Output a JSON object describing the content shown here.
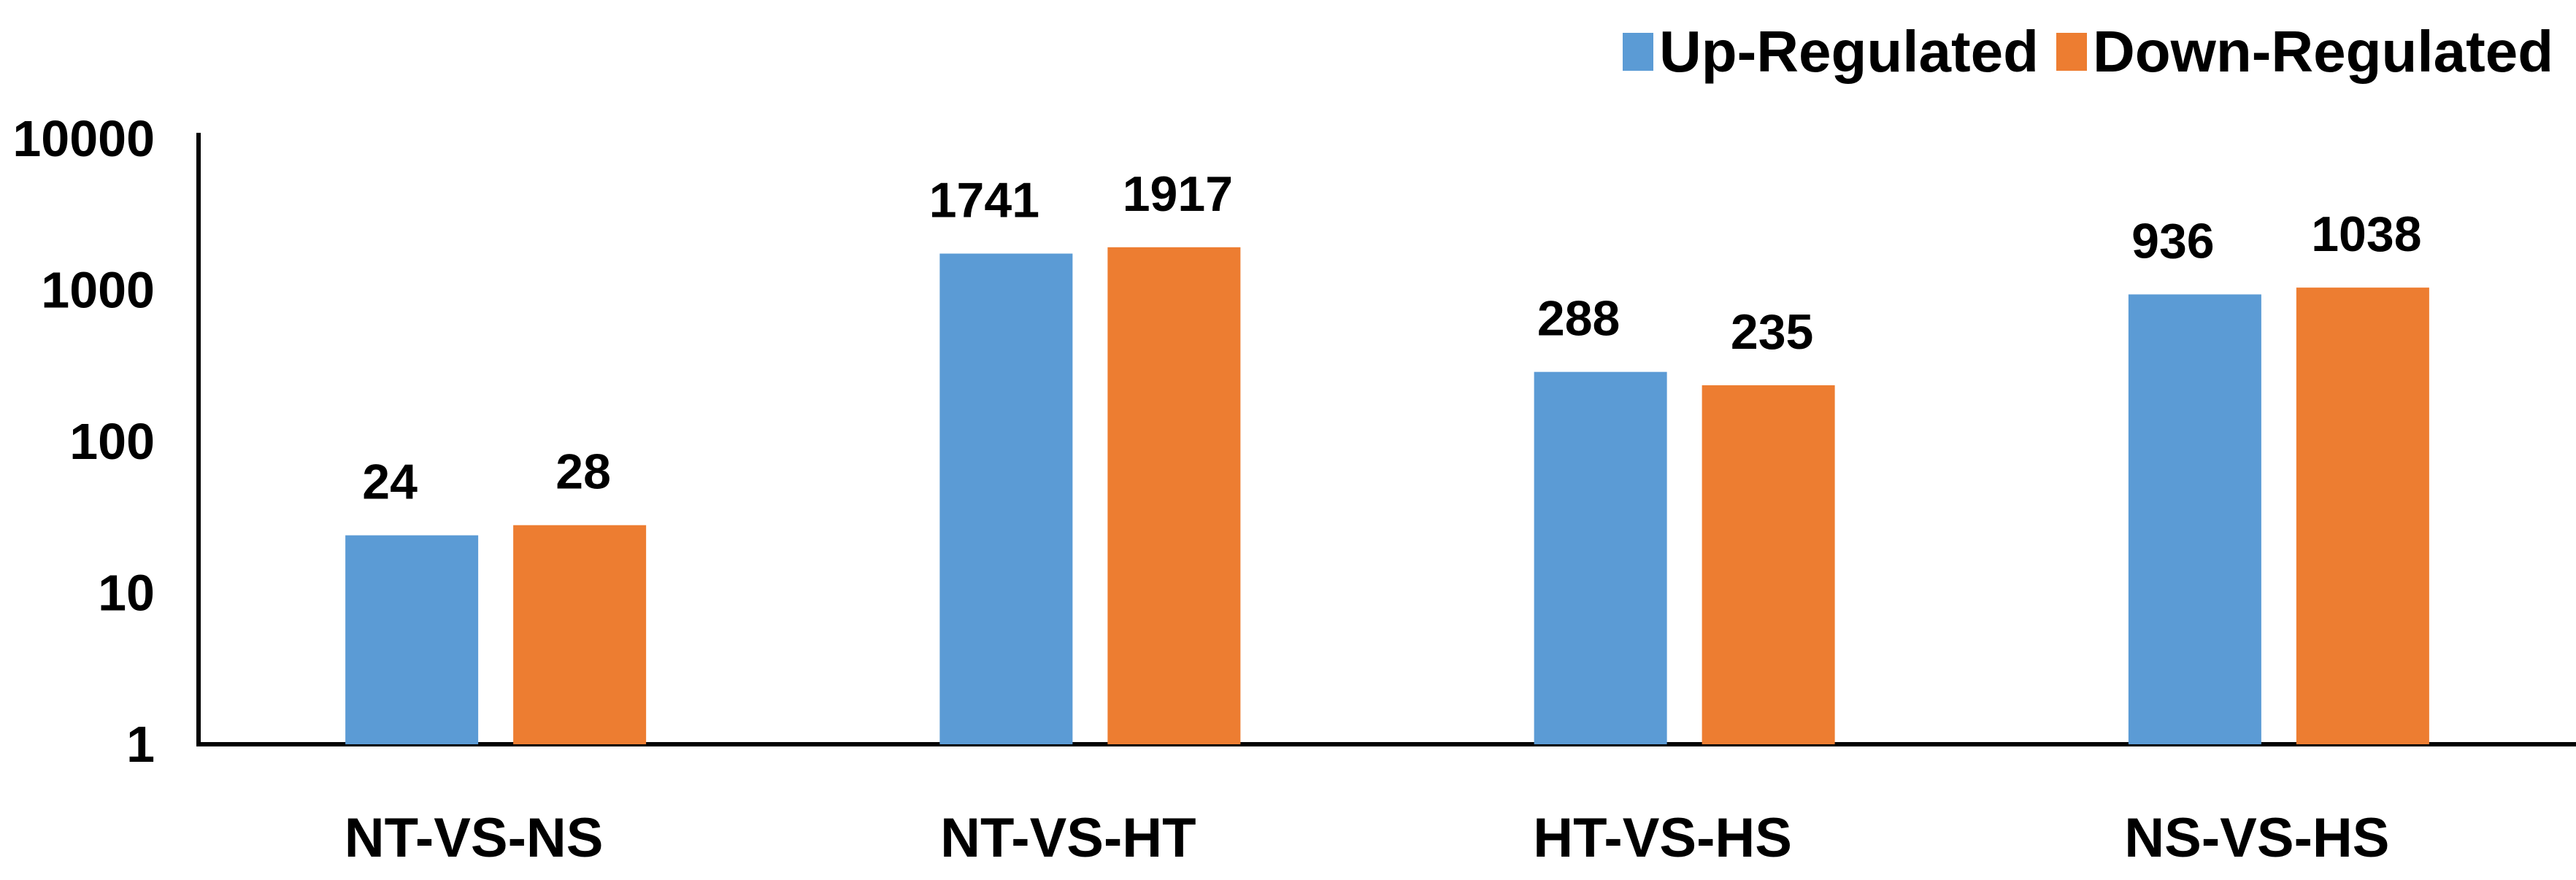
{
  "chart_data": {
    "type": "bar",
    "title": "",
    "xlabel": "",
    "ylabel": "",
    "categories": [
      "NT-VS-NS",
      "NT-VS-HT",
      "HT-VS-HS",
      "NS-VS-HS"
    ],
    "series": [
      {
        "name": "Up-Regulated",
        "values": [
          24,
          1741,
          288,
          936
        ],
        "color": "#5b9bd5"
      },
      {
        "name": "Down-Regulated",
        "values": [
          28,
          1917,
          235,
          1038
        ],
        "color": "#ed7d31"
      }
    ],
    "y_scale": "log",
    "ylim": [
      1,
      10000
    ],
    "yticks": [
      1,
      10,
      100,
      1000,
      10000
    ],
    "ytick_labels": [
      "1",
      "10",
      "100",
      "1000",
      "10000"
    ],
    "grid": false,
    "legend_position": "top-right",
    "data_labels": true
  }
}
